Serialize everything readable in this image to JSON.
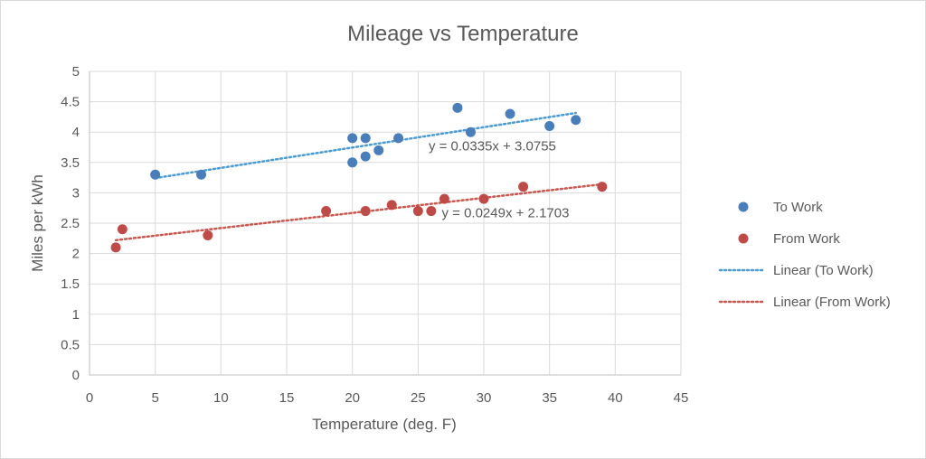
{
  "chart_data": {
    "type": "scatter",
    "title": "Mileage vs Temperature",
    "xlabel": "Temperature (deg. F)",
    "ylabel": "Miles per kWh",
    "xlim": [
      0,
      45
    ],
    "ylim": [
      0,
      5
    ],
    "x_ticks": [
      0,
      5,
      10,
      15,
      20,
      25,
      30,
      35,
      40,
      45
    ],
    "y_ticks": [
      0,
      0.5,
      1,
      1.5,
      2,
      2.5,
      3,
      3.5,
      4,
      4.5,
      5
    ],
    "grid": true,
    "legend_position": "right",
    "series": [
      {
        "name": "To Work",
        "color": "#4a7ebb",
        "points": [
          [
            5,
            3.3
          ],
          [
            8.5,
            3.3
          ],
          [
            20,
            3.9
          ],
          [
            20,
            3.5
          ],
          [
            21,
            3.9
          ],
          [
            21,
            3.6
          ],
          [
            22,
            3.7
          ],
          [
            23.5,
            3.9
          ],
          [
            28,
            4.4
          ],
          [
            29,
            4.0
          ],
          [
            32,
            4.3
          ],
          [
            35,
            4.1
          ],
          [
            37,
            4.2
          ]
        ]
      },
      {
        "name": "From Work",
        "color": "#be4b48",
        "points": [
          [
            2,
            2.1
          ],
          [
            2.5,
            2.4
          ],
          [
            9,
            2.3
          ],
          [
            18,
            2.7
          ],
          [
            21,
            2.7
          ],
          [
            23,
            2.8
          ],
          [
            25,
            2.7
          ],
          [
            26,
            2.7
          ],
          [
            27,
            2.9
          ],
          [
            30,
            2.9
          ],
          [
            33,
            3.1
          ],
          [
            39,
            3.1
          ]
        ]
      }
    ],
    "trendlines": [
      {
        "name": "Linear (To Work)",
        "color": "#4a9bd4",
        "slope": 0.0335,
        "intercept": 3.0755,
        "x_range": [
          5,
          37
        ],
        "equation": "y = 0.0335x + 3.0755",
        "equation_anchor": [
          25.8,
          3.7
        ]
      },
      {
        "name": "Linear (From Work)",
        "color": "#c9574f",
        "slope": 0.0249,
        "intercept": 2.1703,
        "x_range": [
          2,
          39
        ],
        "equation": "y = 0.0249x + 2.1703",
        "equation_anchor": [
          26.8,
          2.6
        ]
      }
    ]
  }
}
